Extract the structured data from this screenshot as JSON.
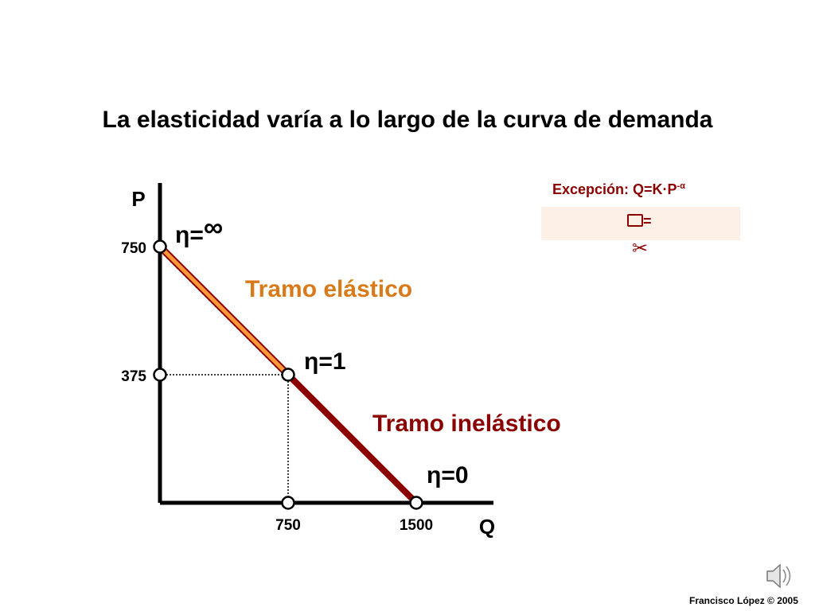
{
  "title": "La elasticidad varía a lo largo de la curva de demanda",
  "exception": {
    "title": "Excepción: Q=K·P",
    "exponent": "-α",
    "formula_symbol": "=",
    "icon": "scissors-icon"
  },
  "footer": "Francisco López © 2005",
  "speaker_icon": "speaker-icon",
  "chart_data": {
    "type": "line",
    "title": "La elasticidad varía a lo largo de la curva de demanda",
    "xlabel": "Q",
    "ylabel": "P",
    "xlim": [
      0,
      1500
    ],
    "ylim": [
      0,
      750
    ],
    "x_ticks": [
      750,
      1500
    ],
    "y_ticks": [
      375,
      750
    ],
    "x_tick_labels": [
      "750",
      "1500"
    ],
    "y_tick_labels": [
      "375",
      "750"
    ],
    "grid": false,
    "series": [
      {
        "name": "Tramo elástico",
        "x": [
          0,
          750
        ],
        "y": [
          750,
          375
        ],
        "color": "#ff9933"
      },
      {
        "name": "Tramo inelástico",
        "x": [
          750,
          1500
        ],
        "y": [
          375,
          0
        ],
        "color": "#8b0000"
      }
    ],
    "reference_lines": [
      {
        "from": [
          0,
          375
        ],
        "to": [
          750,
          375
        ]
      },
      {
        "from": [
          750,
          375
        ],
        "to": [
          750,
          0
        ]
      }
    ],
    "points": [
      [
        0,
        750
      ],
      [
        0,
        375
      ],
      [
        750,
        375
      ],
      [
        750,
        0
      ],
      [
        1500,
        0
      ]
    ],
    "annotations": [
      {
        "text": "η=",
        "symbol": "∞",
        "x": 0,
        "y": 750
      },
      {
        "text": "η=1",
        "x": 750,
        "y": 375
      },
      {
        "text": "η=0",
        "x": 1500,
        "y": 0
      }
    ],
    "segment_labels": [
      "Tramo elástico",
      "Tramo inelástico"
    ],
    "segment_label_colors": [
      "#d97a1a",
      "#8b0000"
    ]
  }
}
